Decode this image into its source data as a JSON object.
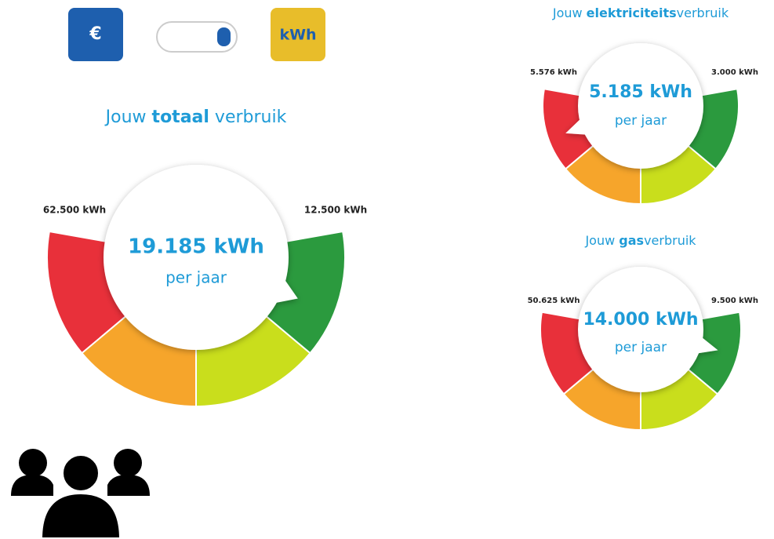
{
  "toggle": {
    "euro": "€",
    "kwh": "kWh"
  },
  "gauges": [
    {
      "title": {
        "prefix": "Jouw ",
        "bold": "totaal",
        "suffix": " verbruik"
      },
      "max_label": "62.500 kWh",
      "min_label": "12.500 kWh",
      "value": "19.185 kWh",
      "unit": "per jaar"
    },
    {
      "title": {
        "prefix": "Jouw ",
        "bold": "elektriciteits",
        "suffix": "verbruik"
      },
      "max_label": "5.576 kWh",
      "min_label": "3.000 kWh",
      "value": "5.185 kWh",
      "unit": "per jaar"
    },
    {
      "title": {
        "prefix": "Jouw ",
        "bold": "gas",
        "suffix": "verbruik"
      },
      "max_label": "50.625 kWh",
      "min_label": "9.500 kWh",
      "value": "14.000 kWh",
      "unit": "per jaar"
    }
  ]
}
